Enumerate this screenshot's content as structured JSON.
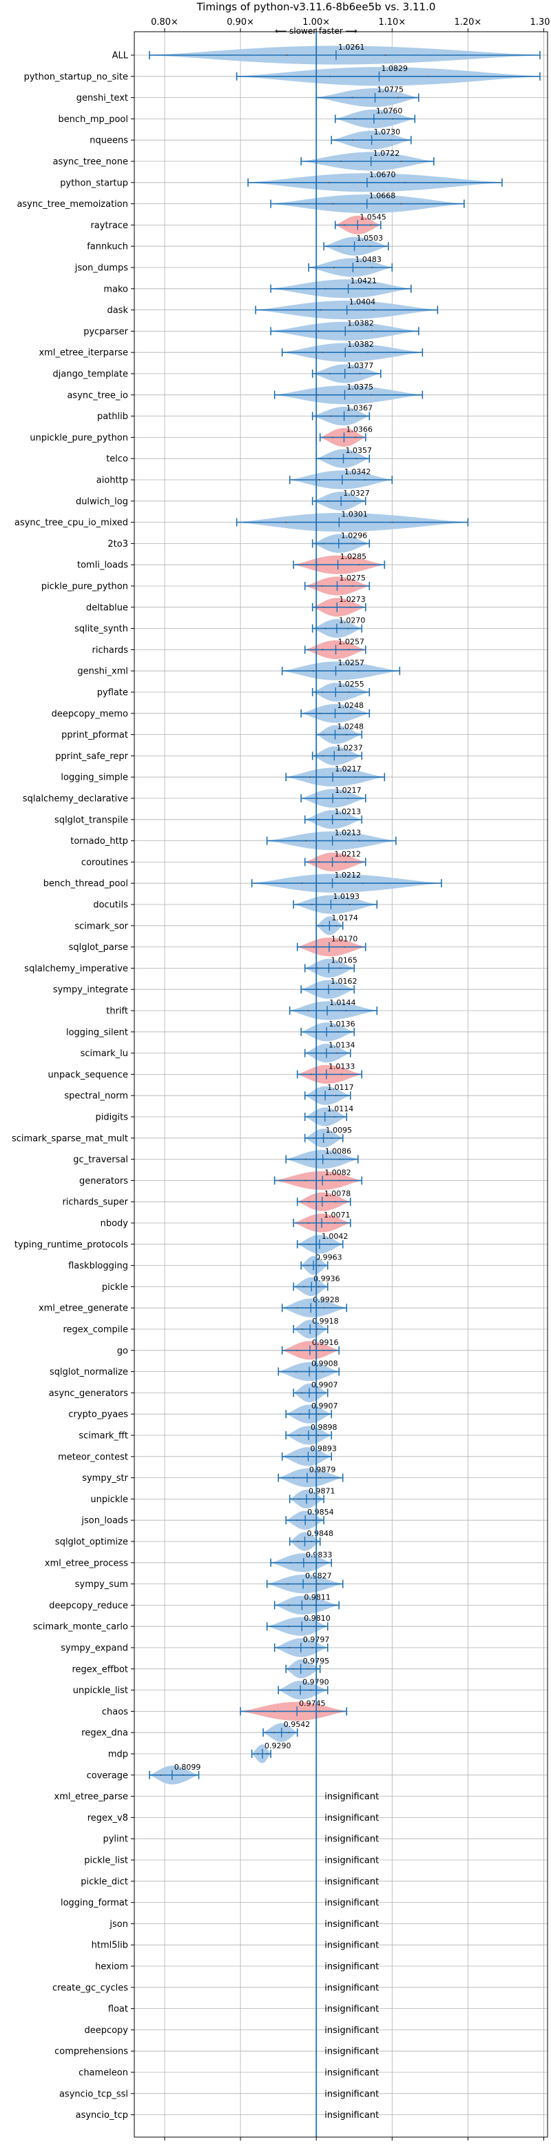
{
  "chart_data": {
    "type": "violin",
    "title": "Timings of python-v3.11.6-8b6ee5b vs. 3.11.0",
    "direction_label": "⟵ slower  faster ⟶",
    "insignificant_label": "insignificant",
    "xlim": [
      0.76,
      1.305
    ],
    "x_ticks": [
      {
        "value": 0.8,
        "label": "0.80×"
      },
      {
        "value": 0.9,
        "label": "0.90×"
      },
      {
        "value": 1.0,
        "label": "1.00×"
      },
      {
        "value": 1.1,
        "label": "1.10×"
      },
      {
        "value": 1.2,
        "label": "1.20×"
      },
      {
        "value": 1.3,
        "label": "1.30×"
      }
    ],
    "colors": {
      "faster": "#a9c9e8",
      "slower": "#f4a9ab",
      "line": "#1f6fb4",
      "grid": "#b0b0b0"
    },
    "benchmarks": [
      {
        "name": "ALL",
        "value": 1.0261,
        "label": "1.0261",
        "min": 0.78,
        "max": 1.295,
        "spread": 0.13,
        "color": "faster"
      },
      {
        "name": "python_startup_no_site",
        "value": 1.0829,
        "label": "1.0829",
        "min": 0.895,
        "max": 1.295,
        "spread": 0.13,
        "color": "faster"
      },
      {
        "name": "genshi_text",
        "value": 1.0775,
        "label": "1.0775",
        "min": 1.0,
        "max": 1.135,
        "spread": 0.06,
        "color": "faster"
      },
      {
        "name": "bench_mp_pool",
        "value": 1.076,
        "label": "1.0760",
        "min": 1.025,
        "max": 1.13,
        "spread": 0.05,
        "color": "faster"
      },
      {
        "name": "nqueens",
        "value": 1.073,
        "label": "1.0730",
        "min": 1.02,
        "max": 1.125,
        "spread": 0.05,
        "color": "faster"
      },
      {
        "name": "async_tree_none",
        "value": 1.0722,
        "label": "1.0722",
        "min": 0.98,
        "max": 1.155,
        "spread": 0.08,
        "color": "faster"
      },
      {
        "name": "python_startup",
        "value": 1.067,
        "label": "1.0670",
        "min": 0.91,
        "max": 1.245,
        "spread": 0.1,
        "color": "faster"
      },
      {
        "name": "async_tree_memoization",
        "value": 1.0668,
        "label": "1.0668",
        "min": 0.94,
        "max": 1.195,
        "spread": 0.09,
        "color": "faster"
      },
      {
        "name": "raytrace",
        "value": 1.0545,
        "label": "1.0545",
        "min": 1.025,
        "max": 1.085,
        "spread": 0.035,
        "color": "slower"
      },
      {
        "name": "fannkuch",
        "value": 1.0503,
        "label": "1.0503",
        "min": 1.01,
        "max": 1.095,
        "spread": 0.04,
        "color": "faster"
      },
      {
        "name": "json_dumps",
        "value": 1.0483,
        "label": "1.0483",
        "min": 0.99,
        "max": 1.1,
        "spread": 0.05,
        "color": "faster"
      },
      {
        "name": "mako",
        "value": 1.0421,
        "label": "1.0421",
        "min": 0.94,
        "max": 1.125,
        "spread": 0.06,
        "color": "faster"
      },
      {
        "name": "dask",
        "value": 1.0404,
        "label": "1.0404",
        "min": 0.92,
        "max": 1.16,
        "spread": 0.07,
        "color": "faster"
      },
      {
        "name": "pycparser",
        "value": 1.0382,
        "label": "1.0382",
        "min": 0.94,
        "max": 1.135,
        "spread": 0.07,
        "color": "faster"
      },
      {
        "name": "xml_etree_iterparse",
        "value": 1.0382,
        "label": "1.0382",
        "min": 0.955,
        "max": 1.14,
        "spread": 0.06,
        "color": "faster"
      },
      {
        "name": "django_template",
        "value": 1.0377,
        "label": "1.0377",
        "min": 0.995,
        "max": 1.085,
        "spread": 0.04,
        "color": "faster"
      },
      {
        "name": "async_tree_io",
        "value": 1.0375,
        "label": "1.0375",
        "min": 0.945,
        "max": 1.14,
        "spread": 0.07,
        "color": "faster"
      },
      {
        "name": "pathlib",
        "value": 1.0367,
        "label": "1.0367",
        "min": 0.995,
        "max": 1.07,
        "spread": 0.035,
        "color": "faster"
      },
      {
        "name": "unpickle_pure_python",
        "value": 1.0366,
        "label": "1.0366",
        "min": 1.005,
        "max": 1.065,
        "spread": 0.03,
        "color": "slower"
      },
      {
        "name": "telco",
        "value": 1.0357,
        "label": "1.0357",
        "min": 1.0,
        "max": 1.07,
        "spread": 0.035,
        "color": "faster"
      },
      {
        "name": "aiohttp",
        "value": 1.0342,
        "label": "1.0342",
        "min": 0.965,
        "max": 1.1,
        "spread": 0.06,
        "color": "faster"
      },
      {
        "name": "dulwich_log",
        "value": 1.0327,
        "label": "1.0327",
        "min": 0.995,
        "max": 1.065,
        "spread": 0.035,
        "color": "faster"
      },
      {
        "name": "async_tree_cpu_io_mixed",
        "value": 1.0301,
        "label": "1.0301",
        "min": 0.895,
        "max": 1.2,
        "spread": 0.14,
        "color": "faster"
      },
      {
        "name": "2to3",
        "value": 1.0296,
        "label": "1.0296",
        "min": 0.995,
        "max": 1.07,
        "spread": 0.04,
        "color": "faster"
      },
      {
        "name": "tomli_loads",
        "value": 1.0285,
        "label": "1.0285",
        "min": 0.97,
        "max": 1.09,
        "spread": 0.055,
        "color": "slower"
      },
      {
        "name": "pickle_pure_python",
        "value": 1.0275,
        "label": "1.0275",
        "min": 0.985,
        "max": 1.07,
        "spread": 0.04,
        "color": "slower"
      },
      {
        "name": "deltablue",
        "value": 1.0273,
        "label": "1.0273",
        "min": 0.995,
        "max": 1.065,
        "spread": 0.035,
        "color": "slower"
      },
      {
        "name": "sqlite_synth",
        "value": 1.027,
        "label": "1.0270",
        "min": 0.995,
        "max": 1.06,
        "spread": 0.03,
        "color": "faster"
      },
      {
        "name": "richards",
        "value": 1.0257,
        "label": "1.0257",
        "min": 0.985,
        "max": 1.065,
        "spread": 0.035,
        "color": "slower"
      },
      {
        "name": "genshi_xml",
        "value": 1.0257,
        "label": "1.0257",
        "min": 0.955,
        "max": 1.11,
        "spread": 0.06,
        "color": "faster"
      },
      {
        "name": "pyflate",
        "value": 1.0255,
        "label": "1.0255",
        "min": 0.995,
        "max": 1.07,
        "spread": 0.035,
        "color": "faster"
      },
      {
        "name": "deepcopy_memo",
        "value": 1.0248,
        "label": "1.0248",
        "min": 0.98,
        "max": 1.07,
        "spread": 0.04,
        "color": "faster"
      },
      {
        "name": "pprint_pformat",
        "value": 1.0248,
        "label": "1.0248",
        "min": 1.0,
        "max": 1.06,
        "spread": 0.03,
        "color": "faster"
      },
      {
        "name": "pprint_safe_repr",
        "value": 1.0237,
        "label": "1.0237",
        "min": 0.995,
        "max": 1.06,
        "spread": 0.03,
        "color": "faster"
      },
      {
        "name": "logging_simple",
        "value": 1.0217,
        "label": "1.0217",
        "min": 0.96,
        "max": 1.09,
        "spread": 0.06,
        "color": "faster"
      },
      {
        "name": "sqlalchemy_declarative",
        "value": 1.0217,
        "label": "1.0217",
        "min": 0.98,
        "max": 1.065,
        "spread": 0.04,
        "color": "faster"
      },
      {
        "name": "sqlglot_transpile",
        "value": 1.0213,
        "label": "1.0213",
        "min": 0.985,
        "max": 1.06,
        "spread": 0.035,
        "color": "faster"
      },
      {
        "name": "tornado_http",
        "value": 1.0213,
        "label": "1.0213",
        "min": 0.935,
        "max": 1.105,
        "spread": 0.07,
        "color": "faster"
      },
      {
        "name": "coroutines",
        "value": 1.0212,
        "label": "1.0212",
        "min": 0.985,
        "max": 1.065,
        "spread": 0.035,
        "color": "slower"
      },
      {
        "name": "bench_thread_pool",
        "value": 1.0212,
        "label": "1.0212",
        "min": 0.915,
        "max": 1.165,
        "spread": 0.08,
        "color": "faster"
      },
      {
        "name": "docutils",
        "value": 1.0193,
        "label": "1.0193",
        "min": 0.97,
        "max": 1.08,
        "spread": 0.05,
        "color": "faster"
      },
      {
        "name": "scimark_sor",
        "value": 1.0174,
        "label": "1.0174",
        "min": 1.0,
        "max": 1.035,
        "spread": 0.018,
        "color": "faster"
      },
      {
        "name": "sqlglot_parse",
        "value": 1.017,
        "label": "1.0170",
        "min": 0.975,
        "max": 1.065,
        "spread": 0.04,
        "color": "slower"
      },
      {
        "name": "sqlalchemy_imperative",
        "value": 1.0165,
        "label": "1.0165",
        "min": 0.985,
        "max": 1.05,
        "spread": 0.03,
        "color": "faster"
      },
      {
        "name": "sympy_integrate",
        "value": 1.0162,
        "label": "1.0162",
        "min": 0.98,
        "max": 1.05,
        "spread": 0.03,
        "color": "faster"
      },
      {
        "name": "thrift",
        "value": 1.0144,
        "label": "1.0144",
        "min": 0.965,
        "max": 1.08,
        "spread": 0.05,
        "color": "faster"
      },
      {
        "name": "logging_silent",
        "value": 1.0136,
        "label": "1.0136",
        "min": 0.98,
        "max": 1.05,
        "spread": 0.03,
        "color": "faster"
      },
      {
        "name": "scimark_lu",
        "value": 1.0134,
        "label": "1.0134",
        "min": 0.985,
        "max": 1.045,
        "spread": 0.028,
        "color": "faster"
      },
      {
        "name": "unpack_sequence",
        "value": 1.0133,
        "label": "1.0133",
        "min": 0.975,
        "max": 1.06,
        "spread": 0.04,
        "color": "slower"
      },
      {
        "name": "spectral_norm",
        "value": 1.0117,
        "label": "1.0117",
        "min": 0.985,
        "max": 1.045,
        "spread": 0.028,
        "color": "faster"
      },
      {
        "name": "pidigits",
        "value": 1.0114,
        "label": "1.0114",
        "min": 0.985,
        "max": 1.04,
        "spread": 0.025,
        "color": "faster"
      },
      {
        "name": "scimark_sparse_mat_mult",
        "value": 1.0095,
        "label": "1.0095",
        "min": 0.985,
        "max": 1.035,
        "spread": 0.022,
        "color": "faster"
      },
      {
        "name": "gc_traversal",
        "value": 1.0086,
        "label": "1.0086",
        "min": 0.96,
        "max": 1.055,
        "spread": 0.045,
        "color": "faster"
      },
      {
        "name": "generators",
        "value": 1.0082,
        "label": "1.0082",
        "min": 0.945,
        "max": 1.06,
        "spread": 0.045,
        "color": "slower"
      },
      {
        "name": "richards_super",
        "value": 1.0078,
        "label": "1.0078",
        "min": 0.975,
        "max": 1.045,
        "spread": 0.035,
        "color": "slower"
      },
      {
        "name": "nbody",
        "value": 1.0071,
        "label": "1.0071",
        "min": 0.97,
        "max": 1.045,
        "spread": 0.035,
        "color": "slower"
      },
      {
        "name": "typing_runtime_protocols",
        "value": 1.0042,
        "label": "1.0042",
        "min": 0.975,
        "max": 1.035,
        "spread": 0.028,
        "color": "faster"
      },
      {
        "name": "flaskblogging",
        "value": 0.9963,
        "label": "0.9963",
        "min": 0.98,
        "max": 1.015,
        "spread": 0.015,
        "color": "faster"
      },
      {
        "name": "pickle",
        "value": 0.9936,
        "label": "0.9936",
        "min": 0.97,
        "max": 1.015,
        "spread": 0.02,
        "color": "faster"
      },
      {
        "name": "xml_etree_generate",
        "value": 0.9928,
        "label": "0.9928",
        "min": 0.955,
        "max": 1.04,
        "spread": 0.035,
        "color": "faster"
      },
      {
        "name": "regex_compile",
        "value": 0.9918,
        "label": "0.9918",
        "min": 0.97,
        "max": 1.015,
        "spread": 0.02,
        "color": "faster"
      },
      {
        "name": "go",
        "value": 0.9916,
        "label": "0.9916",
        "min": 0.955,
        "max": 1.03,
        "spread": 0.035,
        "color": "slower"
      },
      {
        "name": "sqlglot_normalize",
        "value": 0.9908,
        "label": "0.9908",
        "min": 0.95,
        "max": 1.03,
        "spread": 0.035,
        "color": "faster"
      },
      {
        "name": "async_generators",
        "value": 0.9907,
        "label": "0.9907",
        "min": 0.97,
        "max": 1.015,
        "spread": 0.02,
        "color": "faster"
      },
      {
        "name": "crypto_pyaes",
        "value": 0.9907,
        "label": "0.9907",
        "min": 0.96,
        "max": 1.02,
        "spread": 0.025,
        "color": "faster"
      },
      {
        "name": "scimark_fft",
        "value": 0.9898,
        "label": "0.9898",
        "min": 0.96,
        "max": 1.02,
        "spread": 0.025,
        "color": "faster"
      },
      {
        "name": "meteor_contest",
        "value": 0.9893,
        "label": "0.9893",
        "min": 0.955,
        "max": 1.02,
        "spread": 0.028,
        "color": "faster"
      },
      {
        "name": "sympy_str",
        "value": 0.9879,
        "label": "0.9879",
        "min": 0.95,
        "max": 1.035,
        "spread": 0.035,
        "color": "faster"
      },
      {
        "name": "unpickle",
        "value": 0.9871,
        "label": "0.9871",
        "min": 0.965,
        "max": 1.01,
        "spread": 0.02,
        "color": "faster"
      },
      {
        "name": "json_loads",
        "value": 0.9854,
        "label": "0.9854",
        "min": 0.96,
        "max": 1.01,
        "spread": 0.022,
        "color": "faster"
      },
      {
        "name": "sqlglot_optimize",
        "value": 0.9848,
        "label": "0.9848",
        "min": 0.965,
        "max": 1.005,
        "spread": 0.018,
        "color": "faster"
      },
      {
        "name": "xml_etree_process",
        "value": 0.9833,
        "label": "0.9833",
        "min": 0.94,
        "max": 1.02,
        "spread": 0.035,
        "color": "faster"
      },
      {
        "name": "sympy_sum",
        "value": 0.9827,
        "label": "0.9827",
        "min": 0.935,
        "max": 1.035,
        "spread": 0.04,
        "color": "faster"
      },
      {
        "name": "deepcopy_reduce",
        "value": 0.9811,
        "label": "0.9811",
        "min": 0.945,
        "max": 1.03,
        "spread": 0.035,
        "color": "faster"
      },
      {
        "name": "scimark_monte_carlo",
        "value": 0.981,
        "label": "0.9810",
        "min": 0.935,
        "max": 1.015,
        "spread": 0.035,
        "color": "faster"
      },
      {
        "name": "sympy_expand",
        "value": 0.9797,
        "label": "0.9797",
        "min": 0.945,
        "max": 1.015,
        "spread": 0.03,
        "color": "faster"
      },
      {
        "name": "regex_effbot",
        "value": 0.9795,
        "label": "0.9795",
        "min": 0.96,
        "max": 1.005,
        "spread": 0.02,
        "color": "faster"
      },
      {
        "name": "unpickle_list",
        "value": 0.979,
        "label": "0.9790",
        "min": 0.95,
        "max": 1.015,
        "spread": 0.028,
        "color": "faster"
      },
      {
        "name": "chaos",
        "value": 0.9745,
        "label": "0.9745",
        "min": 0.9,
        "max": 1.04,
        "spread": 0.06,
        "color": "slower"
      },
      {
        "name": "regex_dna",
        "value": 0.9542,
        "label": "0.9542",
        "min": 0.93,
        "max": 0.975,
        "spread": 0.02,
        "color": "faster"
      },
      {
        "name": "mdp",
        "value": 0.929,
        "label": "0.9290",
        "min": 0.915,
        "max": 0.94,
        "spread": 0.012,
        "color": "faster"
      },
      {
        "name": "coverage",
        "value": 0.8099,
        "label": "0.8099",
        "min": 0.78,
        "max": 0.845,
        "spread": 0.03,
        "color": "faster"
      },
      {
        "name": "xml_etree_parse",
        "insignificant": true
      },
      {
        "name": "regex_v8",
        "insignificant": true
      },
      {
        "name": "pylint",
        "insignificant": true
      },
      {
        "name": "pickle_list",
        "insignificant": true
      },
      {
        "name": "pickle_dict",
        "insignificant": true
      },
      {
        "name": "logging_format",
        "insignificant": true
      },
      {
        "name": "json",
        "insignificant": true
      },
      {
        "name": "html5lib",
        "insignificant": true
      },
      {
        "name": "hexiom",
        "insignificant": true
      },
      {
        "name": "create_gc_cycles",
        "insignificant": true
      },
      {
        "name": "float",
        "insignificant": true
      },
      {
        "name": "deepcopy",
        "insignificant": true
      },
      {
        "name": "comprehensions",
        "insignificant": true
      },
      {
        "name": "chameleon",
        "insignificant": true
      },
      {
        "name": "asyncio_tcp_ssl",
        "insignificant": true
      },
      {
        "name": "asyncio_tcp",
        "insignificant": true
      }
    ]
  }
}
